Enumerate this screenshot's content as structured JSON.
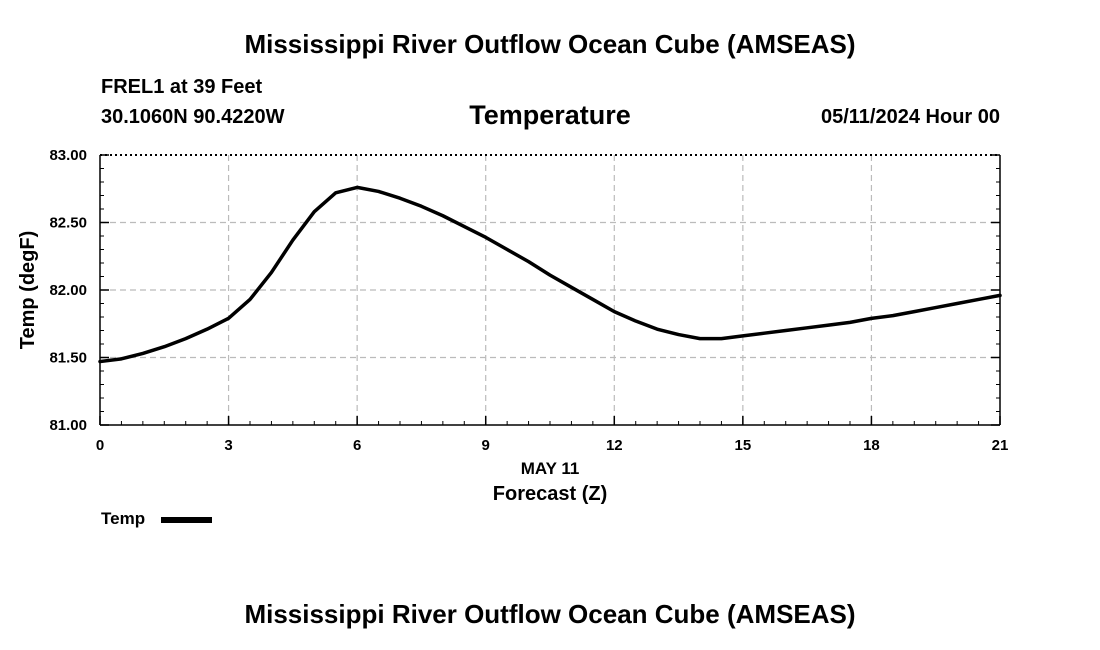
{
  "header": {
    "main_title": "Mississippi River Outflow Ocean Cube (AMSEAS)",
    "station": "FREL1 at 39 Feet",
    "coordinates": "30.1060N  90.4220W",
    "chart_title": "Temperature",
    "datetime": "05/11/2024 Hour 00"
  },
  "footer": {
    "title": "Mississippi River Outflow Ocean Cube (AMSEAS)"
  },
  "legend": {
    "label": "Temp",
    "color": "#000000"
  },
  "chart_data": {
    "type": "line",
    "title": "Temperature",
    "xlabel": "Forecast (Z)",
    "xsublabel": "MAY 11",
    "ylabel": "Temp (degF)",
    "xlim": [
      0,
      21
    ],
    "ylim": [
      81.0,
      83.0
    ],
    "x_ticks": [
      0,
      3,
      6,
      9,
      12,
      15,
      18,
      21
    ],
    "y_ticks": [
      81.0,
      81.5,
      82.0,
      82.5,
      83.0
    ],
    "y_tick_labels": [
      "81.00",
      "81.50",
      "82.00",
      "82.50",
      "83.00"
    ],
    "grid": true,
    "legend_position": "bottom-left",
    "series": [
      {
        "name": "Temp",
        "color": "#000000",
        "x": [
          0,
          0.5,
          1,
          1.5,
          2,
          2.5,
          3,
          3.5,
          4,
          4.5,
          5,
          5.5,
          6,
          6.5,
          7,
          7.5,
          8,
          8.5,
          9,
          9.5,
          10,
          10.5,
          11,
          11.5,
          12,
          12.5,
          13,
          13.5,
          14,
          14.5,
          15,
          15.5,
          16,
          16.5,
          17,
          17.5,
          18,
          18.5,
          19,
          19.5,
          20,
          20.5,
          21
        ],
        "y": [
          81.47,
          81.49,
          81.53,
          81.58,
          81.64,
          81.71,
          81.79,
          81.93,
          82.13,
          82.37,
          82.58,
          82.72,
          82.76,
          82.73,
          82.68,
          82.62,
          82.55,
          82.47,
          82.39,
          82.3,
          82.21,
          82.11,
          82.02,
          81.93,
          81.84,
          81.77,
          81.71,
          81.67,
          81.64,
          81.64,
          81.66,
          81.68,
          81.7,
          81.72,
          81.74,
          81.76,
          81.79,
          81.81,
          81.84,
          81.87,
          81.9,
          81.93,
          81.96
        ]
      }
    ]
  }
}
